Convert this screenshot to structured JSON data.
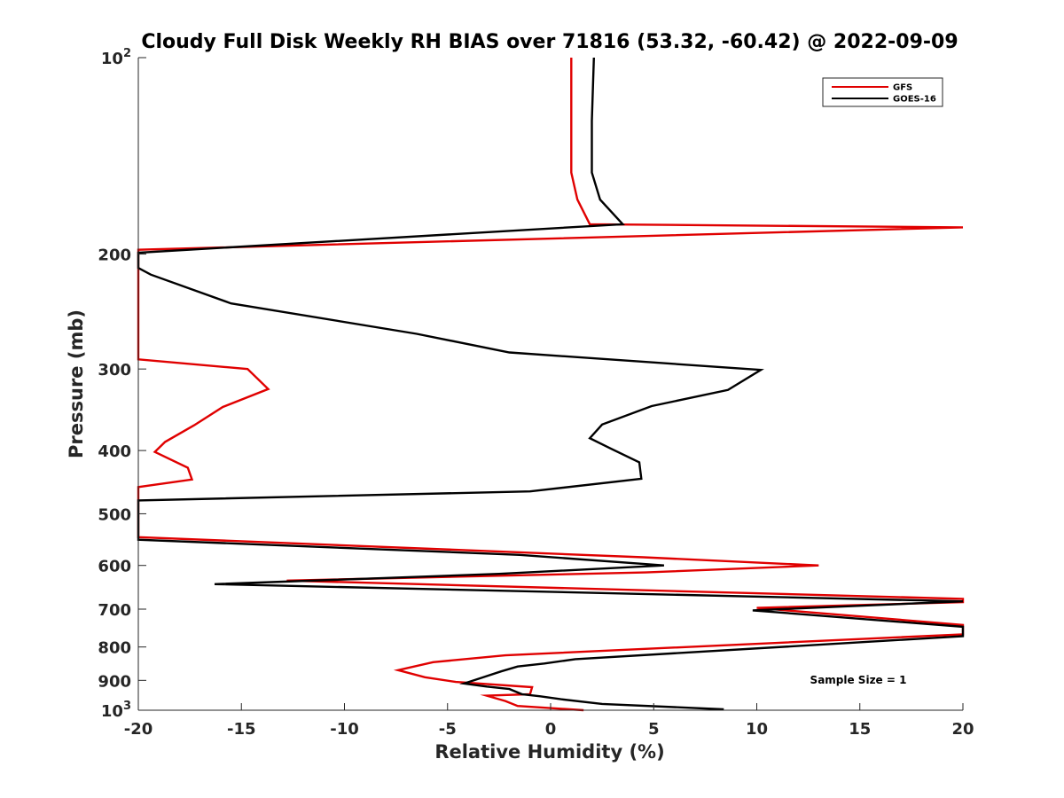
{
  "chart_data": {
    "type": "line",
    "title": "Cloudy Full Disk Weekly RH BIAS over 71816 (53.32, -60.42) @ 2022-09-09",
    "xlabel": "Relative Humidity (%)",
    "ylabel": "Pressure (mb)",
    "xlim": [
      -20,
      20
    ],
    "ylim": [
      100,
      1000
    ],
    "y_scale": "log",
    "y_reversed": true,
    "grid": false,
    "x_ticks": [
      -20,
      -15,
      -10,
      -5,
      0,
      5,
      10,
      15,
      20
    ],
    "x_tick_labels": [
      "-20",
      "-15",
      "-10",
      "-5",
      "0",
      "5",
      "10",
      "15",
      "20"
    ],
    "y_ticks": [
      {
        "value": 100,
        "base": "10",
        "exp": "2"
      },
      {
        "value": 200,
        "label": "200"
      },
      {
        "value": 300,
        "label": "300"
      },
      {
        "value": 400,
        "label": "400"
      },
      {
        "value": 500,
        "label": "500"
      },
      {
        "value": 600,
        "label": "600"
      },
      {
        "value": 700,
        "label": "700"
      },
      {
        "value": 800,
        "label": "800"
      },
      {
        "value": 900,
        "label": "900"
      },
      {
        "value": 1000,
        "base": "10",
        "exp": "3"
      }
    ],
    "legend_position": "top-right",
    "annotation": "Sample Size = 1",
    "series": [
      {
        "name": "GFS",
        "color": "#e00000",
        "points": [
          [
            1.0,
            100
          ],
          [
            1.0,
            150
          ],
          [
            1.3,
            165
          ],
          [
            1.9,
            180
          ],
          [
            20.0,
            182
          ],
          [
            -20.0,
            197
          ],
          [
            -20.0,
            290
          ],
          [
            -14.7,
            300
          ],
          [
            -13.7,
            322
          ],
          [
            -15.9,
            343
          ],
          [
            -17.3,
            366
          ],
          [
            -18.7,
            388
          ],
          [
            -19.2,
            402
          ],
          [
            -17.6,
            425
          ],
          [
            -17.4,
            443
          ],
          [
            -20.0,
            455
          ],
          [
            -20.0,
            543
          ],
          [
            4.5,
            583
          ],
          [
            13.0,
            600
          ],
          [
            4.6,
            615
          ],
          [
            -12.8,
            633
          ],
          [
            20.0,
            675
          ],
          [
            20.0,
            683
          ],
          [
            10.0,
            697
          ],
          [
            20.0,
            740
          ],
          [
            20.0,
            765
          ],
          [
            -2.2,
            824
          ],
          [
            -5.7,
            844
          ],
          [
            -7.4,
            868
          ],
          [
            -6.1,
            890
          ],
          [
            -4.6,
            905
          ],
          [
            -0.9,
            922
          ],
          [
            -1.0,
            945
          ],
          [
            -3.1,
            950
          ],
          [
            -2.2,
            968
          ],
          [
            -1.6,
            985
          ],
          [
            1.6,
            1000
          ]
        ]
      },
      {
        "name": "GOES-16",
        "color": "#000000",
        "points": [
          [
            2.1,
            100
          ],
          [
            2.0,
            125
          ],
          [
            2.0,
            150
          ],
          [
            2.4,
            165
          ],
          [
            3.5,
            180
          ],
          [
            -20.0,
            199
          ],
          [
            -20.0,
            210
          ],
          [
            -19.4,
            215
          ],
          [
            -15.5,
            238
          ],
          [
            -6.5,
            265
          ],
          [
            -2.0,
            283
          ],
          [
            10.2,
            301
          ],
          [
            8.6,
            323
          ],
          [
            4.9,
            342
          ],
          [
            2.5,
            365
          ],
          [
            1.9,
            383
          ],
          [
            2.9,
            397
          ],
          [
            4.3,
            417
          ],
          [
            4.4,
            442
          ],
          [
            -1.0,
            462
          ],
          [
            -20.0,
            477
          ],
          [
            -20.0,
            548
          ],
          [
            -1.5,
            578
          ],
          [
            5.5,
            600
          ],
          [
            -2.5,
            618
          ],
          [
            -16.3,
            641
          ],
          [
            20.0,
            681
          ],
          [
            9.8,
            703
          ],
          [
            20.0,
            745
          ],
          [
            20.0,
            770
          ],
          [
            1.2,
            835
          ],
          [
            -0.3,
            848
          ],
          [
            -1.6,
            857
          ],
          [
            -2.4,
            872
          ],
          [
            -4.2,
            910
          ],
          [
            -3.1,
            920
          ],
          [
            -2.0,
            928
          ],
          [
            -1.4,
            945
          ],
          [
            -0.5,
            952
          ],
          [
            0.5,
            962
          ],
          [
            2.5,
            978
          ],
          [
            8.4,
            997
          ]
        ]
      }
    ]
  }
}
